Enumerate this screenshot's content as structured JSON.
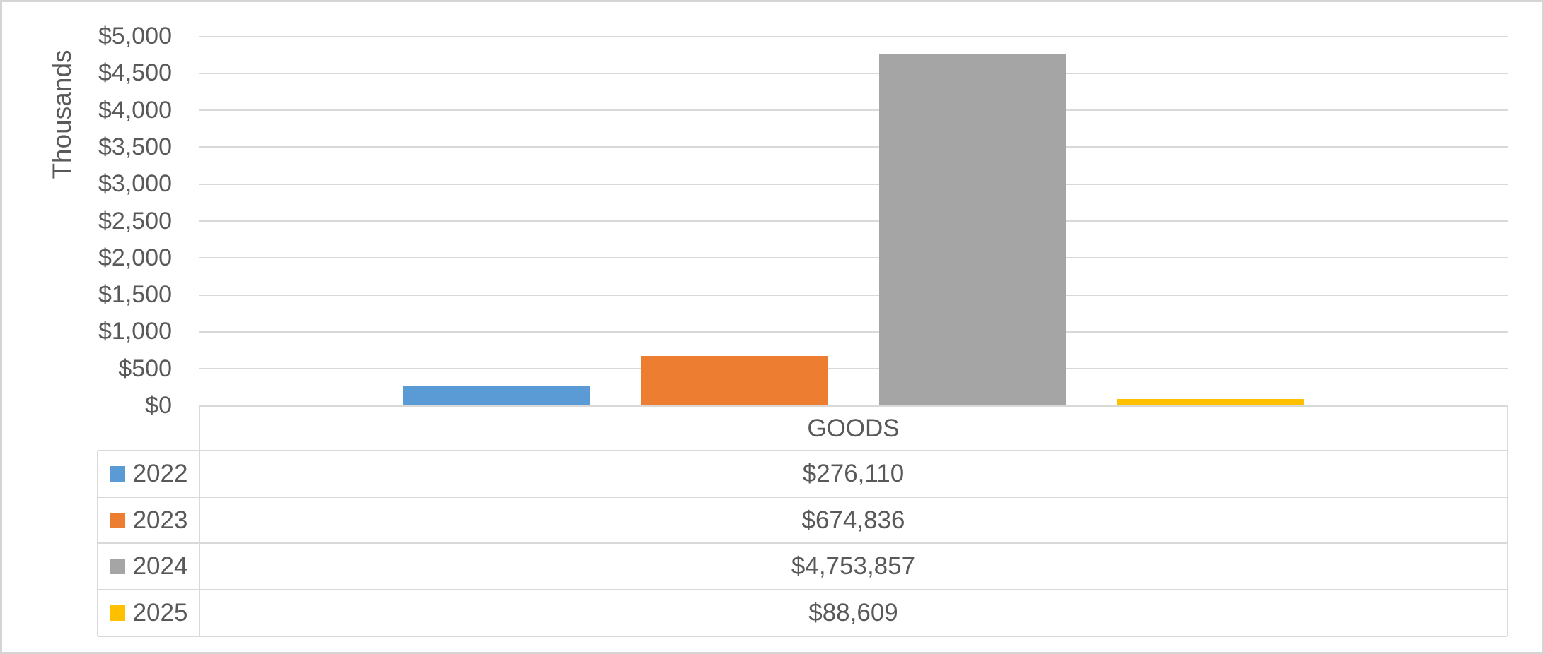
{
  "chart_data": {
    "type": "bar",
    "title": "",
    "categories": [
      "GOODS"
    ],
    "series": [
      {
        "name": "2022",
        "values": [
          276110
        ],
        "display_value": "$276,110",
        "color": "#5B9BD5"
      },
      {
        "name": "2023",
        "values": [
          674836
        ],
        "display_value": "$674,836",
        "color": "#ED7D31"
      },
      {
        "name": "2024",
        "values": [
          4753857
        ],
        "display_value": "$4,753,857",
        "color": "#A5A5A5"
      },
      {
        "name": "2025",
        "values": [
          88609
        ],
        "display_value": "$88,609",
        "color": "#FFC000"
      }
    ],
    "xlabel": "",
    "ylabel": "Thousands",
    "y_tick_labels": [
      "$5,000",
      "$4,500",
      "$4,000",
      "$3,500",
      "$3,000",
      "$2,500",
      "$2,000",
      "$1,500",
      "$1,000",
      "$500",
      "$0"
    ],
    "ylim": [
      0,
      5000000
    ],
    "y_axis_units_divisor": 1000,
    "y_tick_step": 500000,
    "grid": true,
    "legend_position": "data table left column"
  },
  "colors": {
    "text": "#595959",
    "gridline": "#D9D9D9",
    "table_border": "#D9D9D9",
    "frame_border": "#D5D5D5",
    "background": "#FFFFFF"
  }
}
